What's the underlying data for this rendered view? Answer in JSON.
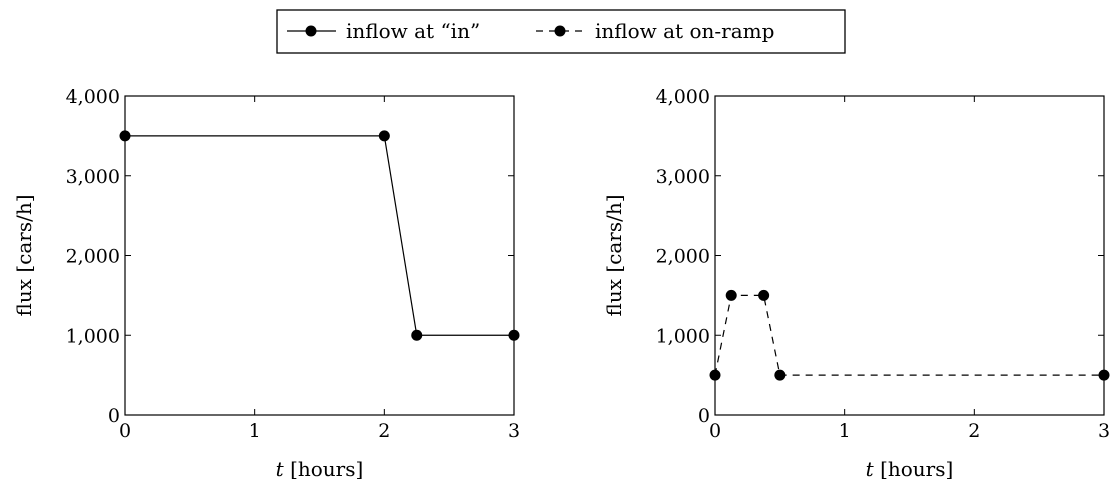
{
  "legend": {
    "entries": [
      {
        "label": "inflow at “in”",
        "style": "solid"
      },
      {
        "label": "inflow at on-ramp",
        "style": "dashed"
      }
    ]
  },
  "chart_data": [
    {
      "type": "line",
      "xlabel_var": "t",
      "xlabel_unit": "[hours]",
      "ylabel": "flux [cars/h]",
      "xlim": [
        0,
        3
      ],
      "ylim": [
        0,
        4000
      ],
      "xticks": [
        0,
        1,
        2,
        3
      ],
      "xtick_labels": [
        "0",
        "1",
        "2",
        "3"
      ],
      "yticks": [
        0,
        1000,
        2000,
        3000,
        4000
      ],
      "ytick_labels": [
        "0",
        "1,000",
        "2,000",
        "3,000",
        "4,000"
      ],
      "grid": false,
      "series": [
        {
          "name": "inflow at “in”",
          "style": "solid",
          "x": [
            0,
            2,
            2.25,
            3
          ],
          "y": [
            3500,
            3500,
            1000,
            1000
          ]
        }
      ]
    },
    {
      "type": "line",
      "xlabel_var": "t",
      "xlabel_unit": "[hours]",
      "ylabel": "flux [cars/h]",
      "xlim": [
        0,
        3
      ],
      "ylim": [
        0,
        4000
      ],
      "xticks": [
        0,
        1,
        2,
        3
      ],
      "xtick_labels": [
        "0",
        "1",
        "2",
        "3"
      ],
      "yticks": [
        0,
        1000,
        2000,
        3000,
        4000
      ],
      "ytick_labels": [
        "0",
        "1,000",
        "2,000",
        "3,000",
        "4,000"
      ],
      "grid": false,
      "series": [
        {
          "name": "inflow at on-ramp",
          "style": "dashed",
          "x": [
            0,
            0.125,
            0.375,
            0.5,
            3
          ],
          "y": [
            500,
            1500,
            1500,
            500,
            500
          ]
        }
      ]
    }
  ]
}
